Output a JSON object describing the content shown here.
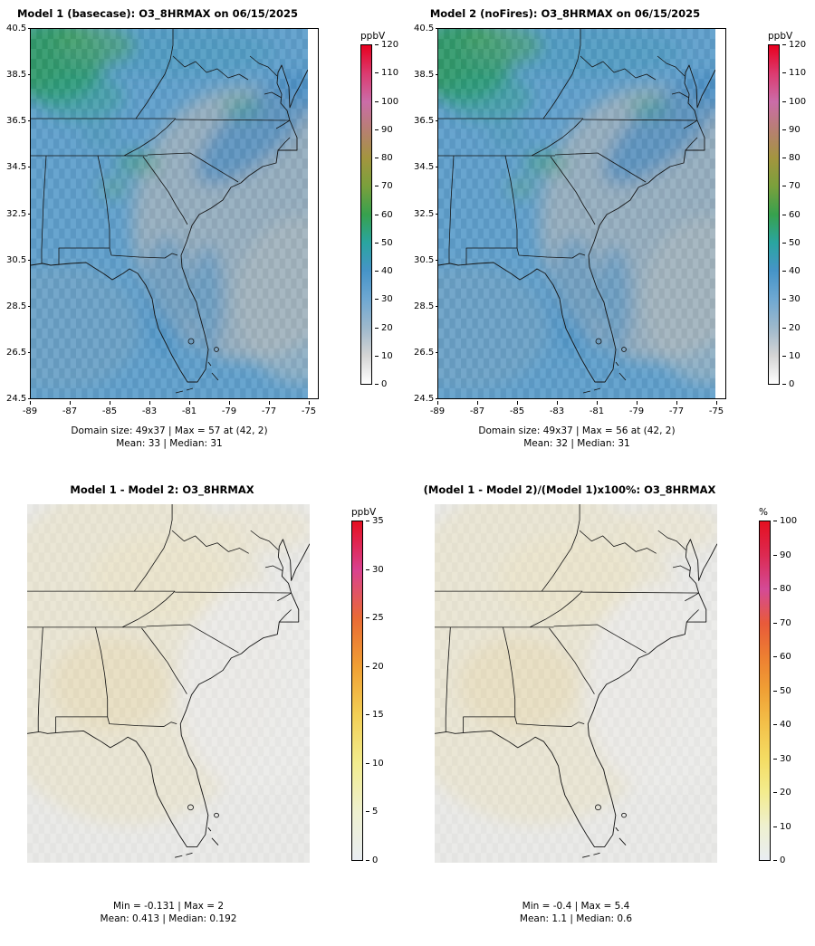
{
  "page": {
    "background": "#ffffff"
  },
  "panels": [
    {
      "title": "Model 1 (basecase): O3_8HRMAX on 06/15/2025",
      "colorbar_title": "ppbV",
      "colorbar_ticks": [
        0,
        10,
        20,
        30,
        40,
        50,
        60,
        70,
        80,
        90,
        100,
        110,
        120
      ],
      "colorbar_colors": [
        "#fefefe",
        "#d4d4d4",
        "#9db8cc",
        "#6fa8d2",
        "#4694c8",
        "#2aa5a0",
        "#37a14e",
        "#7aa03c",
        "#a3953f",
        "#b77f72",
        "#cb6ca8",
        "#dc3b70",
        "#e8001f"
      ],
      "y_ticks": [
        "24.5",
        "26.5",
        "28.5",
        "30.5",
        "32.5",
        "34.5",
        "36.5",
        "38.5",
        "40.5"
      ],
      "x_ticks": [
        "-89",
        "-87",
        "-85",
        "-83",
        "-81",
        "-79",
        "-77",
        "-75"
      ],
      "stats1": "Domain size: 49x37 | Max = 57 at (42, 2)",
      "stats2": "Mean: 33 |  Median: 31"
    },
    {
      "title": "Model 2 (noFires): O3_8HRMAX on 06/15/2025",
      "colorbar_title": "ppbV",
      "colorbar_ticks": [
        0,
        10,
        20,
        30,
        40,
        50,
        60,
        70,
        80,
        90,
        100,
        110,
        120
      ],
      "colorbar_colors": [
        "#fefefe",
        "#d4d4d4",
        "#9db8cc",
        "#6fa8d2",
        "#4694c8",
        "#2aa5a0",
        "#37a14e",
        "#7aa03c",
        "#a3953f",
        "#b77f72",
        "#cb6ca8",
        "#dc3b70",
        "#e8001f"
      ],
      "y_ticks": [
        "24.5",
        "26.5",
        "28.5",
        "30.5",
        "32.5",
        "34.5",
        "36.5",
        "38.5",
        "40.5"
      ],
      "x_ticks": [
        "-89",
        "-87",
        "-85",
        "-83",
        "-81",
        "-79",
        "-77",
        "-75"
      ],
      "stats1": "Domain size: 49x37 | Max = 56 at (42, 2)",
      "stats2": "Mean: 32 |  Median: 31"
    },
    {
      "title": "Model 1 - Model 2: O3_8HRMAX",
      "colorbar_title": "ppbV",
      "colorbar_ticks": [
        0,
        5,
        10,
        15,
        20,
        25,
        30,
        35
      ],
      "colorbar_colors": [
        "#e9edf2",
        "#eef0cf",
        "#f2ec8e",
        "#f3cf55",
        "#f09f33",
        "#e96a35",
        "#d9418f",
        "#e50f20"
      ],
      "stats1": "Min = -0.131 | Max = 2",
      "stats2": "Mean: 0.413 |  Median: 0.192"
    },
    {
      "title": "(Model 1 - Model 2)/(Model 1)x100%: O3_8HRMAX",
      "colorbar_title": "%",
      "colorbar_ticks": [
        0,
        10,
        20,
        30,
        40,
        50,
        60,
        70,
        80,
        90,
        100
      ],
      "colorbar_colors": [
        "#e9edf2",
        "#eff0cf",
        "#f3ec8e",
        "#f4dc63",
        "#f3c14a",
        "#f0a035",
        "#ed7f31",
        "#e85a3a",
        "#d44a96",
        "#dc2a52",
        "#e50f20"
      ],
      "stats1": "Min = -0.4 | Max = 5.4",
      "stats2": "Mean: 1.1 |  Median: 0.6"
    }
  ],
  "chart_data": [
    {
      "type": "heatmap",
      "panel": "top-left",
      "title": "Model 1 (basecase): O3_8HRMAX on 06/15/2025",
      "variable": "O3_8HRMAX",
      "date": "06/15/2025",
      "units": "ppbV",
      "grid_size": "49x37",
      "lon_range": [
        -89,
        -75
      ],
      "lat_range": [
        24.5,
        40.5
      ],
      "lon_ticks": [
        -89,
        -87,
        -85,
        -83,
        -81,
        -79,
        -77,
        -75
      ],
      "lat_ticks": [
        24.5,
        26.5,
        28.5,
        30.5,
        32.5,
        34.5,
        36.5,
        38.5,
        40.5
      ],
      "colorbar_range": [
        0,
        120
      ],
      "colorbar_ticks": [
        0,
        10,
        20,
        30,
        40,
        50,
        60,
        70,
        80,
        90,
        100,
        110,
        120
      ],
      "legend_position": "right",
      "stats": {
        "max": 57,
        "max_location": "(42, 2)",
        "mean": 33,
        "median": 31
      }
    },
    {
      "type": "heatmap",
      "panel": "top-right",
      "title": "Model 2 (noFires): O3_8HRMAX on 06/15/2025",
      "variable": "O3_8HRMAX",
      "date": "06/15/2025",
      "units": "ppbV",
      "grid_size": "49x37",
      "lon_range": [
        -89,
        -75
      ],
      "lat_range": [
        24.5,
        40.5
      ],
      "lon_ticks": [
        -89,
        -87,
        -85,
        -83,
        -81,
        -79,
        -77,
        -75
      ],
      "lat_ticks": [
        24.5,
        26.5,
        28.5,
        30.5,
        32.5,
        34.5,
        36.5,
        38.5,
        40.5
      ],
      "colorbar_range": [
        0,
        120
      ],
      "colorbar_ticks": [
        0,
        10,
        20,
        30,
        40,
        50,
        60,
        70,
        80,
        90,
        100,
        110,
        120
      ],
      "legend_position": "right",
      "stats": {
        "max": 56,
        "max_location": "(42, 2)",
        "mean": 32,
        "median": 31
      }
    },
    {
      "type": "heatmap",
      "panel": "bottom-left",
      "title": "Model 1 - Model 2: O3_8HRMAX",
      "variable": "O3_8HRMAX",
      "units": "ppbV",
      "axes_labeled": false,
      "colorbar_range": [
        0,
        35
      ],
      "colorbar_ticks": [
        0,
        5,
        10,
        15,
        20,
        25,
        30,
        35
      ],
      "legend_position": "right",
      "stats": {
        "min": -0.131,
        "max": 2,
        "mean": 0.413,
        "median": 0.192
      }
    },
    {
      "type": "heatmap",
      "panel": "bottom-right",
      "title": "(Model 1 - Model 2)/(Model 1)x100%: O3_8HRMAX",
      "variable": "O3_8HRMAX",
      "units": "%",
      "axes_labeled": false,
      "colorbar_range": [
        0,
        100
      ],
      "colorbar_ticks": [
        0,
        10,
        20,
        30,
        40,
        50,
        60,
        70,
        80,
        90,
        100
      ],
      "legend_position": "right",
      "stats": {
        "min": -0.4,
        "max": 5.4,
        "mean": 1.1,
        "median": 0.6
      }
    }
  ]
}
